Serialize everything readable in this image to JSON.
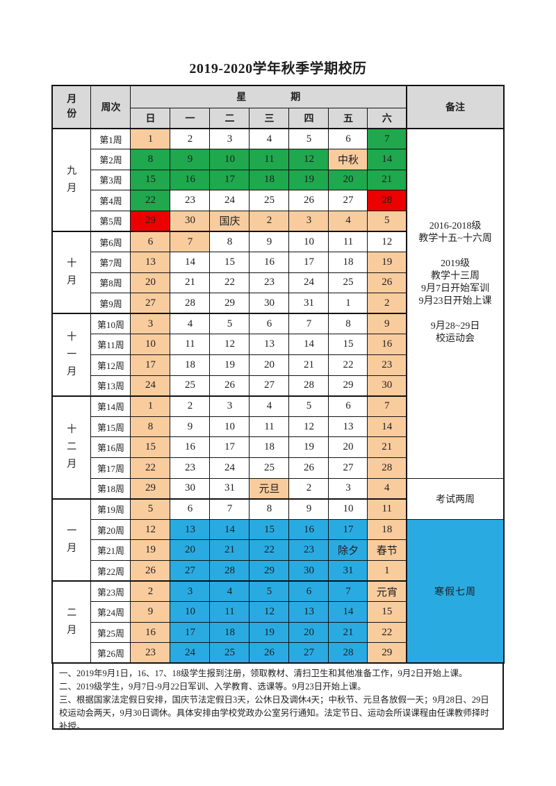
{
  "title": "2019-2020学年秋季学期校历",
  "header": {
    "month_col": "月份",
    "week_col": "周次",
    "week_group": "星期",
    "days": [
      "日",
      "一",
      "二",
      "三",
      "四",
      "五",
      "六"
    ],
    "remark_col": "备注"
  },
  "colors": {
    "w": "#FFFFFF",
    "o": "#F9CC9E",
    "g": "#1FA84D",
    "r": "#EC0000",
    "b": "#29ABE2",
    "header": "#D9D9D9",
    "border": "#111111"
  },
  "color_legend": {
    "o": "weekend-or-holiday",
    "g": "military-training",
    "r": "sports-meet",
    "b": "winter-vacation",
    "w": "regular-class-day"
  },
  "months": [
    {
      "label": "九月",
      "weeks": [
        {
          "label": "第1周",
          "days": [
            {
              "t": "1",
              "c": "o"
            },
            {
              "t": "2",
              "c": "w"
            },
            {
              "t": "3",
              "c": "w"
            },
            {
              "t": "4",
              "c": "w"
            },
            {
              "t": "5",
              "c": "w"
            },
            {
              "t": "6",
              "c": "w"
            },
            {
              "t": "7",
              "c": "g"
            }
          ]
        },
        {
          "label": "第2周",
          "days": [
            {
              "t": "8",
              "c": "g"
            },
            {
              "t": "9",
              "c": "g"
            },
            {
              "t": "10",
              "c": "g"
            },
            {
              "t": "11",
              "c": "g"
            },
            {
              "t": "12",
              "c": "g"
            },
            {
              "t": "中秋",
              "c": "o"
            },
            {
              "t": "14",
              "c": "g"
            }
          ]
        },
        {
          "label": "第3周",
          "days": [
            {
              "t": "15",
              "c": "g"
            },
            {
              "t": "16",
              "c": "g"
            },
            {
              "t": "17",
              "c": "g"
            },
            {
              "t": "18",
              "c": "g"
            },
            {
              "t": "19",
              "c": "g"
            },
            {
              "t": "20",
              "c": "g"
            },
            {
              "t": "21",
              "c": "g"
            }
          ]
        },
        {
          "label": "第4周",
          "days": [
            {
              "t": "22",
              "c": "g"
            },
            {
              "t": "23",
              "c": "w"
            },
            {
              "t": "24",
              "c": "w"
            },
            {
              "t": "25",
              "c": "w"
            },
            {
              "t": "26",
              "c": "w"
            },
            {
              "t": "27",
              "c": "w"
            },
            {
              "t": "28",
              "c": "r"
            }
          ]
        },
        {
          "label": "第5周",
          "days": [
            {
              "t": "29",
              "c": "r"
            },
            {
              "t": "30",
              "c": "o"
            },
            {
              "t": "国庆",
              "c": "o"
            },
            {
              "t": "2",
              "c": "o"
            },
            {
              "t": "3",
              "c": "o"
            },
            {
              "t": "4",
              "c": "o"
            },
            {
              "t": "5",
              "c": "o"
            }
          ]
        }
      ]
    },
    {
      "label": "十月",
      "weeks": [
        {
          "label": "第6周",
          "days": [
            {
              "t": "6",
              "c": "o"
            },
            {
              "t": "7",
              "c": "o"
            },
            {
              "t": "8",
              "c": "w"
            },
            {
              "t": "9",
              "c": "w"
            },
            {
              "t": "10",
              "c": "w"
            },
            {
              "t": "11",
              "c": "w"
            },
            {
              "t": "12",
              "c": "w"
            }
          ]
        },
        {
          "label": "第7周",
          "days": [
            {
              "t": "13",
              "c": "o"
            },
            {
              "t": "14",
              "c": "w"
            },
            {
              "t": "15",
              "c": "w"
            },
            {
              "t": "16",
              "c": "w"
            },
            {
              "t": "17",
              "c": "w"
            },
            {
              "t": "18",
              "c": "w"
            },
            {
              "t": "19",
              "c": "o"
            }
          ]
        },
        {
          "label": "第8周",
          "days": [
            {
              "t": "20",
              "c": "o"
            },
            {
              "t": "21",
              "c": "w"
            },
            {
              "t": "22",
              "c": "w"
            },
            {
              "t": "23",
              "c": "w"
            },
            {
              "t": "24",
              "c": "w"
            },
            {
              "t": "25",
              "c": "w"
            },
            {
              "t": "26",
              "c": "o"
            }
          ]
        },
        {
          "label": "第9周",
          "days": [
            {
              "t": "27",
              "c": "o"
            },
            {
              "t": "28",
              "c": "w"
            },
            {
              "t": "29",
              "c": "w"
            },
            {
              "t": "30",
              "c": "w"
            },
            {
              "t": "31",
              "c": "w"
            },
            {
              "t": "1",
              "c": "w"
            },
            {
              "t": "2",
              "c": "o"
            }
          ]
        }
      ]
    },
    {
      "label": "十一月",
      "weeks": [
        {
          "label": "第10周",
          "days": [
            {
              "t": "3",
              "c": "o"
            },
            {
              "t": "4",
              "c": "w"
            },
            {
              "t": "5",
              "c": "w"
            },
            {
              "t": "6",
              "c": "w"
            },
            {
              "t": "7",
              "c": "w"
            },
            {
              "t": "8",
              "c": "w"
            },
            {
              "t": "9",
              "c": "o"
            }
          ]
        },
        {
          "label": "第11周",
          "days": [
            {
              "t": "10",
              "c": "o"
            },
            {
              "t": "11",
              "c": "w"
            },
            {
              "t": "12",
              "c": "w"
            },
            {
              "t": "13",
              "c": "w"
            },
            {
              "t": "14",
              "c": "w"
            },
            {
              "t": "15",
              "c": "w"
            },
            {
              "t": "16",
              "c": "o"
            }
          ]
        },
        {
          "label": "第12周",
          "days": [
            {
              "t": "17",
              "c": "o"
            },
            {
              "t": "18",
              "c": "w"
            },
            {
              "t": "19",
              "c": "w"
            },
            {
              "t": "20",
              "c": "w"
            },
            {
              "t": "21",
              "c": "w"
            },
            {
              "t": "22",
              "c": "w"
            },
            {
              "t": "23",
              "c": "o"
            }
          ]
        },
        {
          "label": "第13周",
          "days": [
            {
              "t": "24",
              "c": "o"
            },
            {
              "t": "25",
              "c": "w"
            },
            {
              "t": "26",
              "c": "w"
            },
            {
              "t": "27",
              "c": "w"
            },
            {
              "t": "28",
              "c": "w"
            },
            {
              "t": "29",
              "c": "w"
            },
            {
              "t": "30",
              "c": "o"
            }
          ]
        }
      ]
    },
    {
      "label": "十二月",
      "weeks": [
        {
          "label": "第14周",
          "days": [
            {
              "t": "1",
              "c": "o"
            },
            {
              "t": "2",
              "c": "w"
            },
            {
              "t": "3",
              "c": "w"
            },
            {
              "t": "4",
              "c": "w"
            },
            {
              "t": "5",
              "c": "w"
            },
            {
              "t": "6",
              "c": "w"
            },
            {
              "t": "7",
              "c": "o"
            }
          ]
        },
        {
          "label": "第15周",
          "days": [
            {
              "t": "8",
              "c": "o"
            },
            {
              "t": "9",
              "c": "w"
            },
            {
              "t": "10",
              "c": "w"
            },
            {
              "t": "11",
              "c": "w"
            },
            {
              "t": "12",
              "c": "w"
            },
            {
              "t": "13",
              "c": "w"
            },
            {
              "t": "14",
              "c": "o"
            }
          ]
        },
        {
          "label": "第16周",
          "days": [
            {
              "t": "15",
              "c": "o"
            },
            {
              "t": "16",
              "c": "w"
            },
            {
              "t": "17",
              "c": "w"
            },
            {
              "t": "18",
              "c": "w"
            },
            {
              "t": "19",
              "c": "w"
            },
            {
              "t": "20",
              "c": "w"
            },
            {
              "t": "21",
              "c": "o"
            }
          ]
        },
        {
          "label": "第17周",
          "days": [
            {
              "t": "22",
              "c": "o"
            },
            {
              "t": "23",
              "c": "w"
            },
            {
              "t": "24",
              "c": "w"
            },
            {
              "t": "25",
              "c": "w"
            },
            {
              "t": "26",
              "c": "w"
            },
            {
              "t": "27",
              "c": "w"
            },
            {
              "t": "28",
              "c": "o"
            }
          ]
        },
        {
          "label": "第18周",
          "days": [
            {
              "t": "29",
              "c": "o"
            },
            {
              "t": "30",
              "c": "w"
            },
            {
              "t": "31",
              "c": "w"
            },
            {
              "t": "元旦",
              "c": "o"
            },
            {
              "t": "2",
              "c": "w"
            },
            {
              "t": "3",
              "c": "w"
            },
            {
              "t": "4",
              "c": "o"
            }
          ]
        }
      ]
    },
    {
      "label": "一月",
      "weeks": [
        {
          "label": "第19周",
          "days": [
            {
              "t": "5",
              "c": "o"
            },
            {
              "t": "6",
              "c": "w"
            },
            {
              "t": "7",
              "c": "w"
            },
            {
              "t": "8",
              "c": "w"
            },
            {
              "t": "9",
              "c": "w"
            },
            {
              "t": "10",
              "c": "w"
            },
            {
              "t": "11",
              "c": "o"
            }
          ]
        },
        {
          "label": "第20周",
          "days": [
            {
              "t": "12",
              "c": "o"
            },
            {
              "t": "13",
              "c": "b"
            },
            {
              "t": "14",
              "c": "b"
            },
            {
              "t": "15",
              "c": "b"
            },
            {
              "t": "16",
              "c": "b"
            },
            {
              "t": "17",
              "c": "b"
            },
            {
              "t": "18",
              "c": "o"
            }
          ]
        },
        {
          "label": "第21周",
          "days": [
            {
              "t": "19",
              "c": "o"
            },
            {
              "t": "20",
              "c": "b"
            },
            {
              "t": "21",
              "c": "b"
            },
            {
              "t": "22",
              "c": "b"
            },
            {
              "t": "23",
              "c": "b"
            },
            {
              "t": "除夕",
              "c": "b"
            },
            {
              "t": "春节",
              "c": "o"
            }
          ]
        },
        {
          "label": "第22周",
          "days": [
            {
              "t": "26",
              "c": "o"
            },
            {
              "t": "27",
              "c": "b"
            },
            {
              "t": "28",
              "c": "b"
            },
            {
              "t": "29",
              "c": "b"
            },
            {
              "t": "30",
              "c": "b"
            },
            {
              "t": "31",
              "c": "b"
            },
            {
              "t": "1",
              "c": "o"
            }
          ]
        }
      ]
    },
    {
      "label": "二月",
      "weeks": [
        {
          "label": "第23周",
          "days": [
            {
              "t": "2",
              "c": "o"
            },
            {
              "t": "3",
              "c": "b"
            },
            {
              "t": "4",
              "c": "b"
            },
            {
              "t": "5",
              "c": "b"
            },
            {
              "t": "6",
              "c": "b"
            },
            {
              "t": "7",
              "c": "b"
            },
            {
              "t": "元宵",
              "c": "o"
            }
          ]
        },
        {
          "label": "第24周",
          "days": [
            {
              "t": "9",
              "c": "o"
            },
            {
              "t": "10",
              "c": "b"
            },
            {
              "t": "11",
              "c": "b"
            },
            {
              "t": "12",
              "c": "b"
            },
            {
              "t": "13",
              "c": "b"
            },
            {
              "t": "14",
              "c": "b"
            },
            {
              "t": "15",
              "c": "o"
            }
          ]
        },
        {
          "label": "第25周",
          "days": [
            {
              "t": "16",
              "c": "o"
            },
            {
              "t": "17",
              "c": "b"
            },
            {
              "t": "18",
              "c": "b"
            },
            {
              "t": "19",
              "c": "b"
            },
            {
              "t": "20",
              "c": "b"
            },
            {
              "t": "21",
              "c": "b"
            },
            {
              "t": "22",
              "c": "o"
            }
          ]
        },
        {
          "label": "第26周",
          "days": [
            {
              "t": "23",
              "c": "o"
            },
            {
              "t": "24",
              "c": "b"
            },
            {
              "t": "25",
              "c": "b"
            },
            {
              "t": "26",
              "c": "b"
            },
            {
              "t": "27",
              "c": "b"
            },
            {
              "t": "28",
              "c": "b"
            },
            {
              "t": "29",
              "c": "o"
            }
          ]
        }
      ]
    }
  ],
  "remarks": [
    {
      "text": "2016-2018级\n教学十五~十六周\n\n2019级\n教学十三周\n9月7日开始军训\n9月23日开始上课\n\n9月28~29日\n校运动会",
      "weeks": 17,
      "style": "info"
    },
    {
      "text": "考试两周",
      "weeks": 2,
      "style": "exam"
    },
    {
      "text": "寒假七周",
      "weeks": 7,
      "style": "vacation"
    }
  ],
  "notes": [
    "一、2019年9月1日，16、17、18级学生报到注册，领取教材、清扫卫生和其他准备工作，9月2日开始上课。",
    "二、2019级学生，9月7日-9月22日军训、入学教育、选课等。9月23日开始上课。",
    "三、根据国家法定假日安排，国庆节法定假日3天，公休日及调休4天；中秋节、元旦各放假一天；9月28日、29日校运动会两天，9月30日调休。具体安排由学校党政办公室另行通知。法定节日、运动会所误课程由任课教师择时补授。"
  ]
}
